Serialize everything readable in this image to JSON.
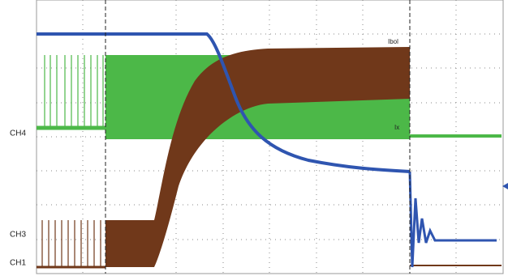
{
  "channels": {
    "ch4": "CH4",
    "ch3": "CH3",
    "ch1": "CH1"
  },
  "cursor_labels": [
    "Ibol",
    "Ix"
  ]
}
